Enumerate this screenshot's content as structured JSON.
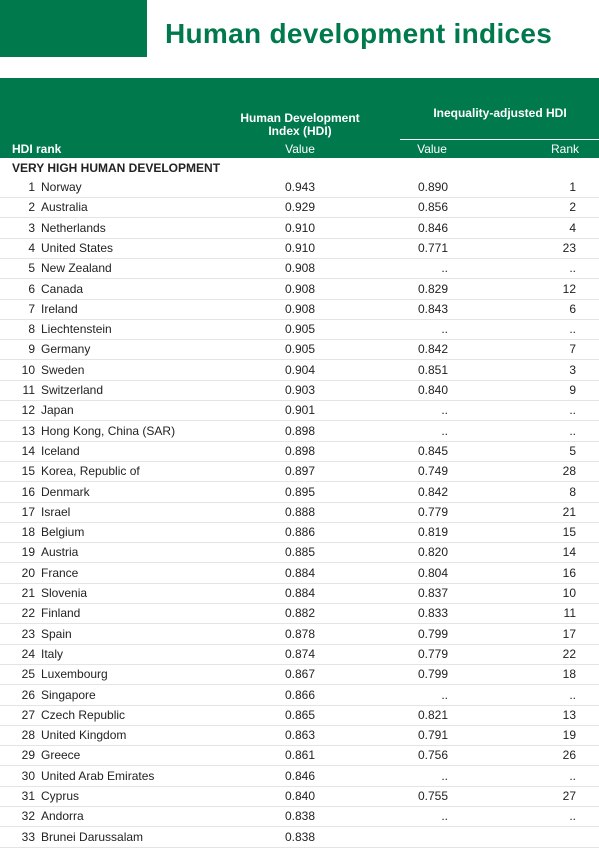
{
  "header": {
    "title": "Human development indices"
  },
  "table": {
    "columns": {
      "rank": "HDI rank",
      "hdi": "Human Development Index (HDI)",
      "hdi_value": "Value",
      "ihdi": "Inequality-adjusted HDI",
      "ihdi_value": "Value",
      "ihdi_rank": "Rank"
    },
    "section": "VERY HIGH HUMAN DEVELOPMENT",
    "rows": [
      [
        "1",
        "Norway",
        "0.943",
        "0.890",
        "1"
      ],
      [
        "2",
        "Australia",
        "0.929",
        "0.856",
        "2"
      ],
      [
        "3",
        "Netherlands",
        "0.910",
        "0.846",
        "4"
      ],
      [
        "4",
        "United States",
        "0.910",
        "0.771",
        "23"
      ],
      [
        "5",
        "New Zealand",
        "0.908",
        "..",
        ".."
      ],
      [
        "6",
        "Canada",
        "0.908",
        "0.829",
        "12"
      ],
      [
        "7",
        "Ireland",
        "0.908",
        "0.843",
        "6"
      ],
      [
        "8",
        "Liechtenstein",
        "0.905",
        "..",
        ".."
      ],
      [
        "9",
        "Germany",
        "0.905",
        "0.842",
        "7"
      ],
      [
        "10",
        "Sweden",
        "0.904",
        "0.851",
        "3"
      ],
      [
        "11",
        "Switzerland",
        "0.903",
        "0.840",
        "9"
      ],
      [
        "12",
        "Japan",
        "0.901",
        "..",
        ".."
      ],
      [
        "13",
        "Hong Kong, China (SAR)",
        "0.898",
        "..",
        ".."
      ],
      [
        "14",
        "Iceland",
        "0.898",
        "0.845",
        "5"
      ],
      [
        "15",
        "Korea, Republic of",
        "0.897",
        "0.749",
        "28"
      ],
      [
        "16",
        "Denmark",
        "0.895",
        "0.842",
        "8"
      ],
      [
        "17",
        "Israel",
        "0.888",
        "0.779",
        "21"
      ],
      [
        "18",
        "Belgium",
        "0.886",
        "0.819",
        "15"
      ],
      [
        "19",
        "Austria",
        "0.885",
        "0.820",
        "14"
      ],
      [
        "20",
        "France",
        "0.884",
        "0.804",
        "16"
      ],
      [
        "21",
        "Slovenia",
        "0.884",
        "0.837",
        "10"
      ],
      [
        "22",
        "Finland",
        "0.882",
        "0.833",
        "11"
      ],
      [
        "23",
        "Spain",
        "0.878",
        "0.799",
        "17"
      ],
      [
        "24",
        "Italy",
        "0.874",
        "0.779",
        "22"
      ],
      [
        "25",
        "Luxembourg",
        "0.867",
        "0.799",
        "18"
      ],
      [
        "26",
        "Singapore",
        "0.866",
        "..",
        ".."
      ],
      [
        "27",
        "Czech Republic",
        "0.865",
        "0.821",
        "13"
      ],
      [
        "28",
        "United Kingdom",
        "0.863",
        "0.791",
        "19"
      ],
      [
        "29",
        "Greece",
        "0.861",
        "0.756",
        "26"
      ],
      [
        "30",
        "United Arab Emirates",
        "0.846",
        "..",
        ".."
      ],
      [
        "31",
        "Cyprus",
        "0.840",
        "0.755",
        "27"
      ],
      [
        "32",
        "Andorra",
        "0.838",
        "..",
        ".."
      ],
      [
        "33",
        "Brunei Darussalam",
        "0.838"
      ]
    ]
  }
}
